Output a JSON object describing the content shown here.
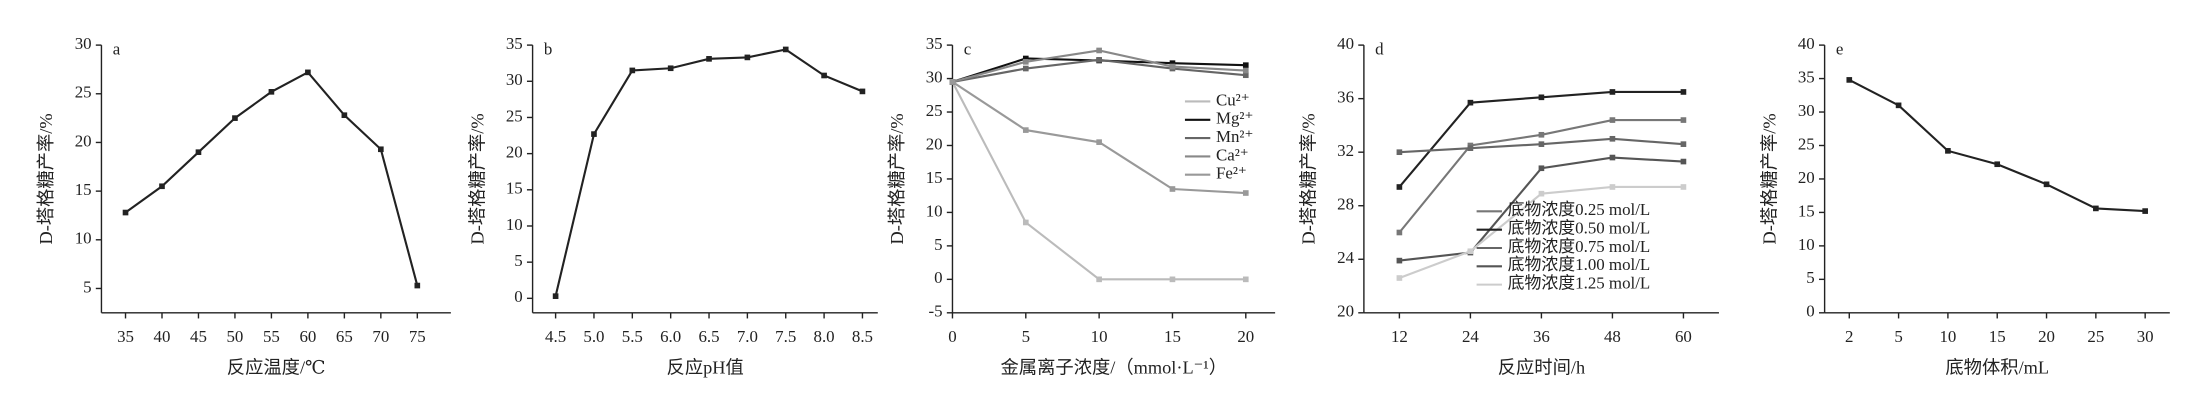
{
  "chart_data": [
    {
      "type": "line",
      "label": "a",
      "x_label": "反应温度/℃",
      "y_label": "D-塔格糖产率/%",
      "x": [
        35,
        40,
        45,
        50,
        55,
        60,
        65,
        70,
        75
      ],
      "values": [
        12.8,
        15.5,
        19,
        22.5,
        25.2,
        27.2,
        22.8,
        19.3,
        5.3
      ],
      "color": "#222222",
      "xlim": [
        31.7,
        79.6
      ],
      "xticks": [
        35,
        40,
        45,
        50,
        55,
        60,
        65,
        70,
        75
      ],
      "ylim": [
        2.5,
        30
      ],
      "yticks": [
        5,
        10,
        15,
        20,
        25,
        30
      ]
    },
    {
      "type": "line",
      "label": "b",
      "x_label": "反应pH值",
      "y_label": "D-塔格糖产率/%",
      "x": [
        4.5,
        5,
        5.5,
        6,
        6.5,
        7,
        7.5,
        8,
        8.5
      ],
      "values": [
        0.3,
        22.7,
        31.5,
        31.8,
        33.1,
        33.3,
        34.4,
        30.8,
        28.6
      ],
      "color": "#222222",
      "xlim": [
        4.2,
        8.7
      ],
      "xticks": [
        4.5,
        {
          "value": 5,
          "label": "5.0"
        },
        5.5,
        {
          "value": 6,
          "label": "6.0"
        },
        6.5,
        {
          "value": 7,
          "label": "7.0"
        },
        7.5,
        {
          "value": 8,
          "label": "8.0"
        },
        8.5
      ],
      "ylim": [
        -2,
        35
      ],
      "yticks": [
        0,
        5,
        10,
        15,
        20,
        25,
        30,
        35
      ]
    },
    {
      "type": "line",
      "label": "c",
      "x_label": "金属离子浓度/（mmol·L⁻¹）",
      "y_label": "D-塔格糖产率/%",
      "legend": "upper right",
      "x": [
        0,
        5,
        10,
        15,
        20
      ],
      "series": [
        {
          "name": "Cu²⁺",
          "color": "#bbbbbb",
          "values": [
            29.5,
            8.5,
            0,
            0,
            0
          ]
        },
        {
          "name": "Mg²⁺",
          "color": "#111111",
          "values": [
            29.5,
            33,
            32.7,
            32.3,
            32
          ]
        },
        {
          "name": "Mn²⁺",
          "color": "#666666",
          "values": [
            29.5,
            31.5,
            32.8,
            31.5,
            30.5
          ]
        },
        {
          "name": "Ca²⁺",
          "color": "#888888",
          "values": [
            29.5,
            32.5,
            34.2,
            31.8,
            31.2
          ]
        },
        {
          "name": "Fe²⁺",
          "color": "#999999",
          "values": [
            29.5,
            22.3,
            20.5,
            13.5,
            12.9
          ]
        }
      ],
      "xlim": [
        0,
        22
      ],
      "xticks": [
        0,
        5,
        10,
        15,
        20
      ],
      "ylim": [
        -5,
        35
      ],
      "yticks": [
        -5,
        0,
        5,
        10,
        15,
        20,
        25,
        30,
        35
      ]
    },
    {
      "type": "line",
      "label": "d",
      "x_label": "反应时间/h",
      "y_label": "D-塔格糖产率/%",
      "legend": "lower right",
      "x": [
        12,
        24,
        36,
        48,
        60
      ],
      "series": [
        {
          "name": "底物浓度0.25 mol/L",
          "color": "#777777",
          "values": [
            26,
            32.5,
            33.3,
            34.4,
            34.4
          ]
        },
        {
          "name": "底物浓度0.50 mol/L",
          "color": "#222222",
          "values": [
            29.4,
            35.7,
            36.1,
            36.5,
            36.5
          ]
        },
        {
          "name": "底物浓度0.75 mol/L",
          "color": "#666666",
          "values": [
            32,
            32.3,
            32.6,
            33,
            32.6
          ]
        },
        {
          "name": "底物浓度1.00 mol/L",
          "color": "#555555",
          "values": [
            23.9,
            24.5,
            30.8,
            31.6,
            31.3
          ]
        },
        {
          "name": "底物浓度1.25 mol/L",
          "color": "#cccccc",
          "values": [
            22.6,
            24.6,
            28.9,
            29.4,
            29.4
          ]
        }
      ],
      "xlim": [
        6,
        66
      ],
      "xticks": [
        12,
        24,
        36,
        48,
        60
      ],
      "ylim": [
        20,
        40
      ],
      "yticks": [
        20,
        24,
        28,
        32,
        36,
        40
      ]
    },
    {
      "type": "line",
      "label": "e",
      "x_label": "底物体积/mL",
      "y_label": "D-塔格糖产率/%",
      "categories": [
        "2",
        "5",
        "10",
        "15",
        "20",
        "25",
        "30"
      ],
      "values": [
        34.8,
        31,
        24.2,
        22.2,
        19.2,
        15.6,
        15.2
      ],
      "color": "#222222",
      "ylim": [
        0,
        40
      ],
      "yticks": [
        0,
        5,
        10,
        15,
        20,
        25,
        30,
        35,
        40
      ]
    }
  ]
}
